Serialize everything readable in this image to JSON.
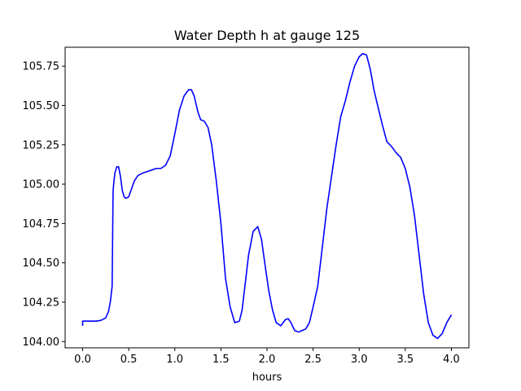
{
  "chart_data": {
    "type": "line",
    "title": "Water Depth h at gauge 125",
    "xlabel": "hours",
    "ylabel": "",
    "xlim": [
      -0.19,
      4.19
    ],
    "ylim": [
      103.96,
      105.87
    ],
    "xticks": [
      0.0,
      0.5,
      1.0,
      1.5,
      2.0,
      2.5,
      3.0,
      3.5,
      4.0
    ],
    "xtick_labels": [
      "0.0",
      "0.5",
      "1.0",
      "1.5",
      "2.0",
      "2.5",
      "3.0",
      "3.5",
      "4.0"
    ],
    "yticks": [
      104.0,
      104.25,
      104.5,
      104.75,
      105.0,
      105.25,
      105.5,
      105.75
    ],
    "ytick_labels": [
      "104.00",
      "104.25",
      "104.50",
      "104.75",
      "105.00",
      "105.25",
      "105.50",
      "105.75"
    ],
    "grid": false,
    "series": [
      {
        "color": "#0000ff",
        "x": [
          0.0,
          0.0,
          0.02,
          0.05,
          0.1,
          0.15,
          0.2,
          0.25,
          0.28,
          0.3,
          0.32,
          0.33,
          0.335,
          0.34,
          0.35,
          0.37,
          0.39,
          0.41,
          0.43,
          0.45,
          0.47,
          0.5,
          0.53,
          0.56,
          0.6,
          0.65,
          0.7,
          0.75,
          0.8,
          0.85,
          0.9,
          0.95,
          1.0,
          1.05,
          1.1,
          1.15,
          1.18,
          1.21,
          1.25,
          1.28,
          1.32,
          1.36,
          1.4,
          1.45,
          1.5,
          1.55,
          1.6,
          1.65,
          1.7,
          1.73,
          1.76,
          1.8,
          1.85,
          1.9,
          1.94,
          1.98,
          2.02,
          2.06,
          2.1,
          2.15,
          2.2,
          2.23,
          2.26,
          2.3,
          2.34,
          2.38,
          2.42,
          2.46,
          2.5,
          2.55,
          2.6,
          2.65,
          2.7,
          2.75,
          2.8,
          2.85,
          2.9,
          2.95,
          3.0,
          3.04,
          3.08,
          3.12,
          3.16,
          3.2,
          3.25,
          3.3,
          3.35,
          3.4,
          3.45,
          3.5,
          3.55,
          3.6,
          3.65,
          3.7,
          3.75,
          3.8,
          3.85,
          3.9,
          3.95,
          4.0
        ],
        "y": [
          104.1,
          104.13,
          104.13,
          104.13,
          104.13,
          104.13,
          104.135,
          104.15,
          104.19,
          104.25,
          104.35,
          104.95,
          104.99,
          105.02,
          105.07,
          105.11,
          105.11,
          105.05,
          104.96,
          104.92,
          104.91,
          104.92,
          104.97,
          105.02,
          105.055,
          105.07,
          105.08,
          105.09,
          105.1,
          105.1,
          105.12,
          105.18,
          105.32,
          105.47,
          105.56,
          105.6,
          105.6,
          105.56,
          105.46,
          105.41,
          105.4,
          105.36,
          105.25,
          105.02,
          104.75,
          104.4,
          104.22,
          104.12,
          104.13,
          104.2,
          104.35,
          104.55,
          104.7,
          104.73,
          104.65,
          104.48,
          104.32,
          104.2,
          104.12,
          104.1,
          104.14,
          104.145,
          104.12,
          104.07,
          104.06,
          104.07,
          104.08,
          104.12,
          104.22,
          104.35,
          104.6,
          104.85,
          105.05,
          105.25,
          105.43,
          105.53,
          105.65,
          105.75,
          105.81,
          105.83,
          105.82,
          105.73,
          105.6,
          105.5,
          105.38,
          105.27,
          105.24,
          105.2,
          105.17,
          105.1,
          104.98,
          104.8,
          104.55,
          104.3,
          104.12,
          104.04,
          104.02,
          104.05,
          104.12,
          104.17
        ]
      }
    ]
  }
}
